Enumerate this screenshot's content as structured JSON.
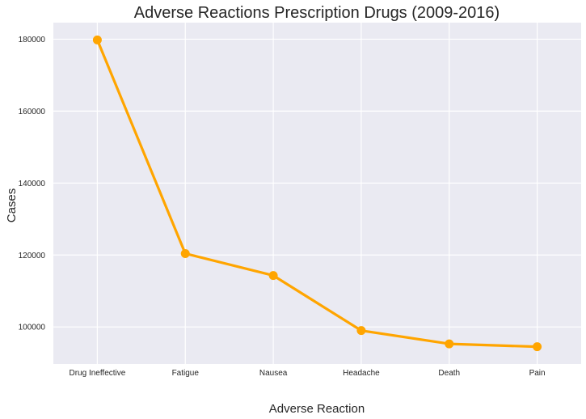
{
  "chart_data": {
    "type": "line",
    "title": "Adverse Reactions Prescription Drugs (2009-2016)",
    "xlabel": "Adverse Reaction",
    "ylabel": "Cases",
    "categories": [
      "Drug Ineffective",
      "Fatigue",
      "Nausea",
      "Headache",
      "Death",
      "Pain"
    ],
    "series": [
      {
        "values": [
          179800,
          120400,
          114300,
          99000,
          95300,
          94500
        ]
      }
    ],
    "ylim": [
      89700,
      184600
    ],
    "yticks": [
      100000,
      120000,
      140000,
      160000,
      180000
    ],
    "ytick_labels": [
      "100000",
      "120000",
      "140000",
      "160000",
      "180000"
    ],
    "grid": true,
    "line_color": "#FFA500",
    "background_color": "#EAEAF2",
    "grid_color": "#FFFFFF"
  }
}
